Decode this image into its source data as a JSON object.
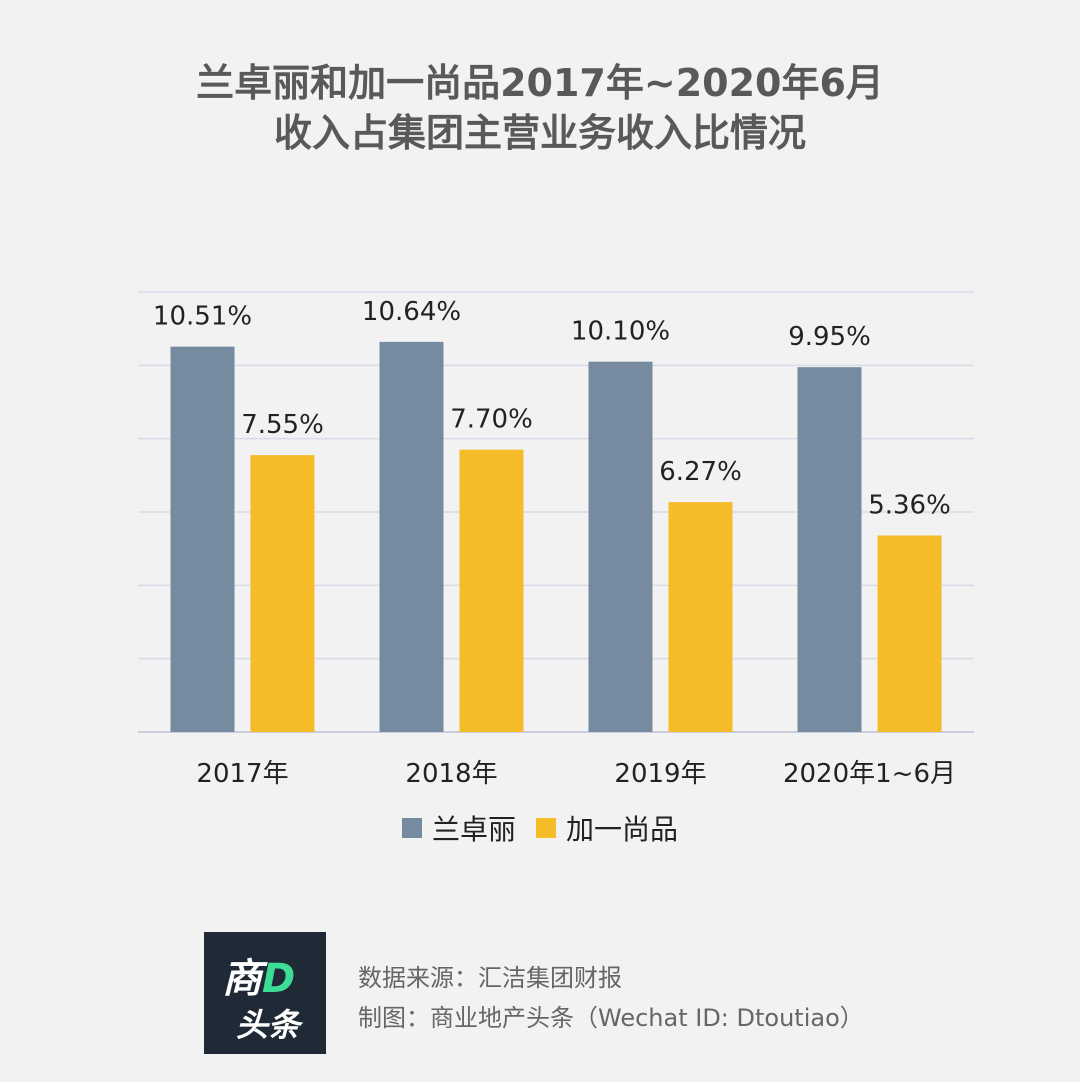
{
  "title": {
    "line1": "兰卓丽和加一尚品2017年~2020年6月",
    "line2": "收入占集团主营业务收入比情况"
  },
  "chart_data": {
    "type": "bar",
    "categories": [
      "2017年",
      "2018年",
      "2019年",
      "2020年1~6月"
    ],
    "series": [
      {
        "name": "兰卓丽",
        "values": [
          10.51,
          10.64,
          10.1,
          9.95
        ],
        "labels": [
          "10.51%",
          "10.64%",
          "10.10%",
          "9.95%"
        ],
        "color": "#768aa0"
      },
      {
        "name": "加一尚品",
        "values": [
          7.55,
          7.7,
          6.27,
          5.36
        ],
        "labels": [
          "7.55%",
          "7.70%",
          "6.27%",
          "5.36%"
        ],
        "color": "#f5bb28"
      }
    ],
    "ylim": [
      0,
      12
    ],
    "grid": true,
    "legend": "bottom"
  },
  "logo": {
    "top": "商",
    "accent": "D",
    "bottom": "头条"
  },
  "source": {
    "line1": "数据来源：汇洁集团财报",
    "line2": "制图：商业地产头条（Wechat ID: Dtoutiao）"
  }
}
